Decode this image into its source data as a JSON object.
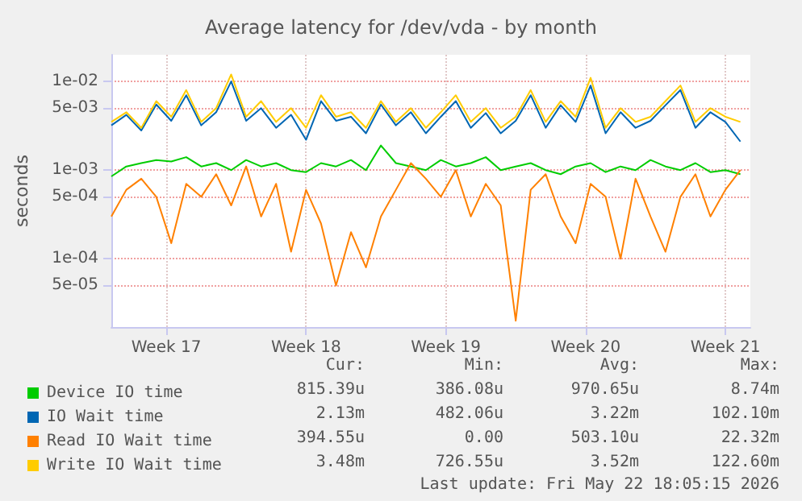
{
  "chart_data": {
    "type": "line",
    "title": "Average latency for /dev/vda - by month",
    "ylabel": "seconds",
    "x": [
      "2026-04-20T18:00",
      "2026-04-21T12:00",
      "2026-04-22T06:00",
      "2026-04-23T00:00",
      "2026-04-23T18:00",
      "2026-04-24T12:00",
      "2026-04-25T06:00",
      "2026-04-26T00:00",
      "2026-04-26T18:00",
      "2026-04-27T12:00",
      "2026-04-28T06:00",
      "2026-04-29T00:00",
      "2026-04-29T18:00",
      "2026-04-30T12:00",
      "2026-05-01T06:00",
      "2026-05-02T00:00",
      "2026-05-02T18:00",
      "2026-05-03T12:00",
      "2026-05-04T06:00",
      "2026-05-05T00:00",
      "2026-05-05T18:00",
      "2026-05-06T12:00",
      "2026-05-07T06:00",
      "2026-05-08T00:00",
      "2026-05-08T18:00",
      "2026-05-09T12:00",
      "2026-05-10T06:00",
      "2026-05-11T00:00",
      "2026-05-11T18:00",
      "2026-05-12T12:00",
      "2026-05-13T06:00",
      "2026-05-14T00:00",
      "2026-05-14T18:00",
      "2026-05-15T12:00",
      "2026-05-16T06:00",
      "2026-05-17T00:00",
      "2026-05-17T18:00",
      "2026-05-18T12:00",
      "2026-05-19T06:00",
      "2026-05-20T00:00",
      "2026-05-20T18:00",
      "2026-05-21T12:00",
      "2026-05-22T06:00"
    ],
    "series": [
      {
        "name": "Device IO time",
        "color": "#00cc00",
        "values": [
          0.00085,
          0.0011,
          0.0012,
          0.0013,
          0.00125,
          0.0014,
          0.0011,
          0.0012,
          0.001,
          0.0013,
          0.0011,
          0.0012,
          0.001,
          0.00095,
          0.0012,
          0.0011,
          0.0013,
          0.001,
          0.0019,
          0.0012,
          0.0011,
          0.001,
          0.0013,
          0.0011,
          0.0012,
          0.0014,
          0.001,
          0.0011,
          0.0012,
          0.001,
          0.0009,
          0.0011,
          0.0012,
          0.00095,
          0.0011,
          0.001,
          0.0013,
          0.0011,
          0.001,
          0.0012,
          0.00095,
          0.001,
          0.0009
        ]
      },
      {
        "name": "IO Wait time",
        "color": "#0066b3",
        "values": [
          0.0032,
          0.0042,
          0.0028,
          0.0055,
          0.0036,
          0.007,
          0.0032,
          0.0045,
          0.01,
          0.0036,
          0.005,
          0.003,
          0.0042,
          0.0022,
          0.006,
          0.0036,
          0.004,
          0.0026,
          0.0055,
          0.0032,
          0.0045,
          0.0026,
          0.004,
          0.006,
          0.003,
          0.0044,
          0.0026,
          0.0036,
          0.007,
          0.003,
          0.0054,
          0.0035,
          0.009,
          0.0026,
          0.0045,
          0.003,
          0.0036,
          0.0054,
          0.008,
          0.003,
          0.0045,
          0.0035,
          0.0021
        ]
      },
      {
        "name": "Read IO Wait time",
        "color": "#ff8000",
        "values": [
          0.0003,
          0.0006,
          0.0008,
          0.0005,
          0.00015,
          0.0007,
          0.0005,
          0.0009,
          0.0004,
          0.0011,
          0.0003,
          0.0007,
          0.00012,
          0.0006,
          0.00025,
          5e-05,
          0.0002,
          8e-05,
          0.0003,
          0.0006,
          0.0012,
          0.0008,
          0.0005,
          0.001,
          0.0003,
          0.0007,
          0.0004,
          2e-05,
          0.0006,
          0.0009,
          0.0003,
          0.00015,
          0.0007,
          0.0005,
          0.0001,
          0.0008,
          0.0003,
          0.00012,
          0.0005,
          0.0009,
          0.0003,
          0.0006,
          0.001
        ]
      },
      {
        "name": "Write IO Wait time",
        "color": "#ffcc00",
        "values": [
          0.0035,
          0.0045,
          0.003,
          0.006,
          0.004,
          0.008,
          0.0035,
          0.005,
          0.012,
          0.004,
          0.006,
          0.0035,
          0.005,
          0.003,
          0.007,
          0.004,
          0.0045,
          0.003,
          0.006,
          0.0035,
          0.005,
          0.003,
          0.0045,
          0.007,
          0.0035,
          0.005,
          0.003,
          0.004,
          0.008,
          0.0035,
          0.006,
          0.004,
          0.011,
          0.003,
          0.005,
          0.0035,
          0.004,
          0.006,
          0.009,
          0.0035,
          0.005,
          0.004,
          0.0035
        ]
      }
    ],
    "log": "y",
    "ylim": [
      1.7e-05,
      0.02
    ],
    "yticks": [
      {
        "value": 5e-05,
        "label": "5e-05"
      },
      {
        "value": 0.0001,
        "label": "1e-04"
      },
      {
        "value": 0.0005,
        "label": "5e-04"
      },
      {
        "value": 0.001,
        "label": "1e-03"
      },
      {
        "value": 0.005,
        "label": "5e-03"
      },
      {
        "value": 0.01,
        "label": "1e-02"
      }
    ],
    "xlim": [
      "2026-04-20T18:00",
      "2026-05-22T18:00"
    ],
    "xticks": [
      {
        "value": "2026-04-23T12:00",
        "label": "Week 17"
      },
      {
        "value": "2026-04-30T12:00",
        "label": "Week 18"
      },
      {
        "value": "2026-05-07T12:00",
        "label": "Week 19"
      },
      {
        "value": "2026-05-14T12:00",
        "label": "Week 20"
      },
      {
        "value": "2026-05-21T12:00",
        "label": "Week 21"
      }
    ],
    "grid": true,
    "legend": "bottom left",
    "marker": "none",
    "annotations": [
      "Cur:",
      "Min:",
      "Avg:",
      "Max:",
      "815.39u",
      "386.08u",
      "970.65u",
      "8.74m",
      "2.13m",
      "482.06u",
      "3.22m",
      "102.10m",
      "394.55u",
      "0.00",
      "503.10u",
      "22.32m",
      "3.48m",
      "726.55u",
      "3.52m",
      "122.60m",
      "Last update: Fri May 22 18:05:15 2026"
    ]
  }
}
